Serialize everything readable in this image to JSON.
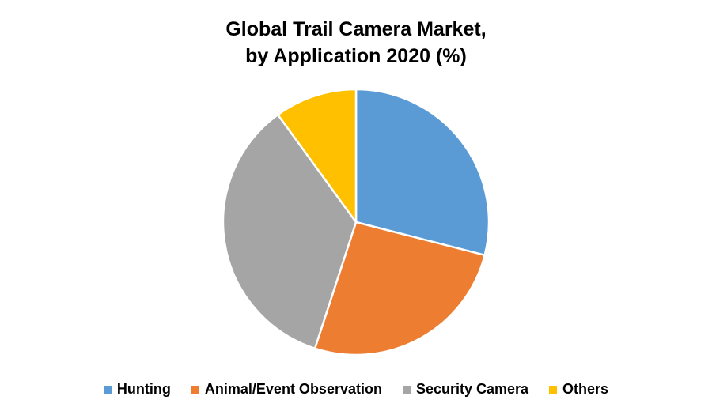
{
  "chart_data": {
    "type": "pie",
    "title_line1": "Global Trail Camera Market,",
    "title_line2": "by Application 2020 (%)",
    "categories": [
      "Hunting",
      "Animal/Event Observation",
      "Security Camera",
      "Others"
    ],
    "values": [
      29,
      26,
      35,
      10
    ],
    "colors": [
      "#5B9BD5",
      "#ED7D31",
      "#A5A5A5",
      "#FFC000"
    ],
    "legend_position": "bottom"
  }
}
